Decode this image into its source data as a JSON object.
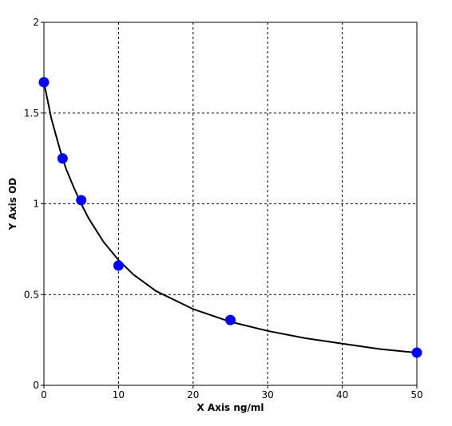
{
  "chart_data": {
    "type": "scatter",
    "xlabel": "X Axis ng/ml",
    "ylabel": "Y Axis OD",
    "xlim": [
      0,
      50
    ],
    "ylim": [
      0,
      2
    ],
    "grid": true,
    "x_ticks": [
      "0",
      "10",
      "20",
      "30",
      "40",
      "50"
    ],
    "y_ticks": [
      "0",
      "0.5",
      "1",
      "1.5",
      "2"
    ],
    "series": [
      {
        "points": [
          {
            "x": 0,
            "y": 1.67
          },
          {
            "x": 2.5,
            "y": 1.25
          },
          {
            "x": 5,
            "y": 1.02
          },
          {
            "x": 10,
            "y": 0.66
          },
          {
            "x": 25,
            "y": 0.36
          },
          {
            "x": 50,
            "y": 0.18
          }
        ],
        "color": "#0000ff"
      }
    ],
    "fit_curve": {
      "color": "#000000",
      "points": [
        {
          "x": 0,
          "y": 1.67
        },
        {
          "x": 1,
          "y": 1.47
        },
        {
          "x": 2,
          "y": 1.32
        },
        {
          "x": 2.5,
          "y": 1.25
        },
        {
          "x": 3,
          "y": 1.19
        },
        {
          "x": 4,
          "y": 1.09
        },
        {
          "x": 5,
          "y": 1.0
        },
        {
          "x": 6,
          "y": 0.92
        },
        {
          "x": 8,
          "y": 0.79
        },
        {
          "x": 10,
          "y": 0.69
        },
        {
          "x": 12,
          "y": 0.61
        },
        {
          "x": 15,
          "y": 0.52
        },
        {
          "x": 20,
          "y": 0.42
        },
        {
          "x": 25,
          "y": 0.35
        },
        {
          "x": 30,
          "y": 0.3
        },
        {
          "x": 35,
          "y": 0.26
        },
        {
          "x": 40,
          "y": 0.23
        },
        {
          "x": 45,
          "y": 0.2
        },
        {
          "x": 50,
          "y": 0.18
        }
      ]
    }
  }
}
